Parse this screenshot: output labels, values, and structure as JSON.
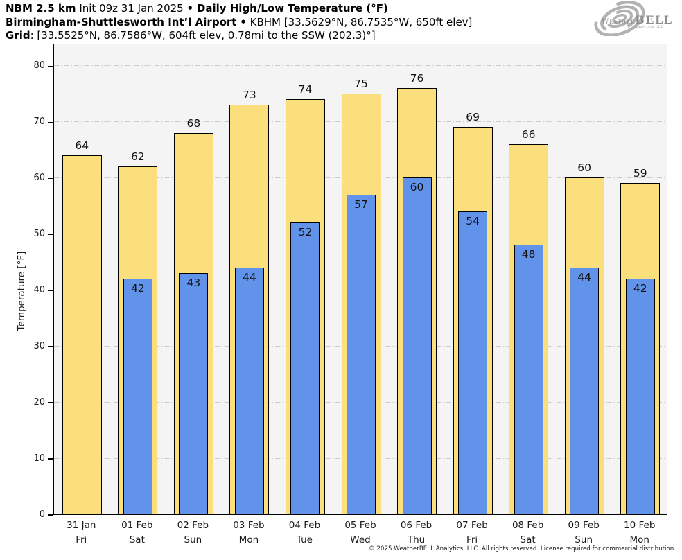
{
  "header": {
    "model": "NBM 2.5 km",
    "init": "Init 09z 31 Jan 2025",
    "bullet": "•",
    "product": "Daily High/Low Temperature (°F)",
    "station_name": "Birmingham-Shuttlesworth Int’l Airport",
    "station_bullet": "•",
    "station_info": "KBHM [33.5629°N, 86.7535°W, 650ft elev]",
    "grid_label": "Grid",
    "grid_info": ": [33.5525°N, 86.7586°W, 604ft elev, 0.78mi to the SSW (202.3)°]"
  },
  "logo": {
    "brand_prefix": "Weather",
    "brand_suffix": "BELL",
    "subtitle": "Analytics LLC"
  },
  "chart_data": {
    "type": "bar",
    "title": "Daily High/Low Temperature (°F)",
    "subtitle": "NBM 2.5 km forecast for KBHM Birmingham-Shuttlesworth Int’l Airport",
    "xlabel": "",
    "ylabel": "Temperature [°F]",
    "ylim": [
      0,
      84
    ],
    "yticks": [
      0,
      10,
      20,
      30,
      40,
      50,
      60,
      70,
      80
    ],
    "grid": "horizontal-dash-dot",
    "legend_position": "none",
    "plot_bg": "#f4f4f4",
    "gridline_color": "#cbcbcb",
    "categories": [
      {
        "date": "31 Jan",
        "day": "Fri"
      },
      {
        "date": "01 Feb",
        "day": "Sat"
      },
      {
        "date": "02 Feb",
        "day": "Sun"
      },
      {
        "date": "03 Feb",
        "day": "Mon"
      },
      {
        "date": "04 Feb",
        "day": "Tue"
      },
      {
        "date": "05 Feb",
        "day": "Wed"
      },
      {
        "date": "06 Feb",
        "day": "Thu"
      },
      {
        "date": "07 Feb",
        "day": "Fri"
      },
      {
        "date": "08 Feb",
        "day": "Sat"
      },
      {
        "date": "09 Feb",
        "day": "Sun"
      },
      {
        "date": "10 Feb",
        "day": "Mon"
      }
    ],
    "series": [
      {
        "name": "High",
        "color": "#fcdf7d",
        "values": [
          64,
          62,
          68,
          73,
          74,
          75,
          76,
          69,
          66,
          60,
          59
        ]
      },
      {
        "name": "Low",
        "color": "#6193eb",
        "values": [
          null,
          42,
          43,
          44,
          52,
          57,
          60,
          54,
          48,
          44,
          42
        ]
      }
    ]
  },
  "footer": {
    "copyright": "© 2025 WeatherBELL Analytics, LLC. All rights reserved. License required for commercial distribution."
  }
}
